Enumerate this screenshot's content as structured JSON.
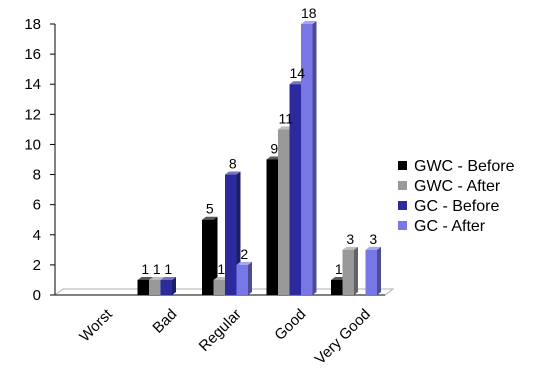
{
  "chart_data": {
    "type": "bar",
    "categories": [
      "Worst",
      "Bad",
      "Regular",
      "Good",
      "Very Good"
    ],
    "series": [
      {
        "name": "GWC - Before",
        "color": "#000000",
        "values": [
          0,
          1,
          5,
          9,
          1
        ]
      },
      {
        "name": "GWC - After",
        "color": "#999999",
        "values": [
          0,
          1,
          1,
          11,
          3
        ]
      },
      {
        "name": "GC - Before",
        "color": "#2b2b9e",
        "values": [
          0,
          1,
          8,
          14,
          0
        ]
      },
      {
        "name": "GC - After",
        "color": "#7777e6",
        "values": [
          0,
          0,
          2,
          18,
          3
        ]
      }
    ],
    "data_labels": [
      [
        null,
        "1",
        "5",
        "9",
        "1"
      ],
      [
        null,
        "1",
        "1",
        "11",
        "3"
      ],
      [
        null,
        "1",
        "8",
        "14",
        null
      ],
      [
        null,
        null,
        "2",
        "18",
        "3"
      ]
    ],
    "yticks": [
      "0",
      "2",
      "4",
      "6",
      "8",
      "10",
      "12",
      "14",
      "16",
      "18"
    ],
    "ylim": [
      0,
      18
    ],
    "legend_position": "right",
    "grid": false,
    "style": "3d-columns"
  }
}
